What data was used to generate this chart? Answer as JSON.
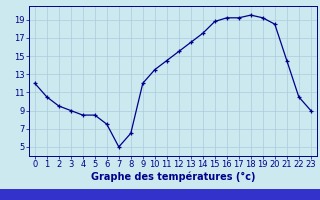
{
  "hours": [
    0,
    1,
    2,
    3,
    4,
    5,
    6,
    7,
    8,
    9,
    10,
    11,
    12,
    13,
    14,
    15,
    16,
    17,
    18,
    19,
    20,
    21,
    22,
    23
  ],
  "temps": [
    12.0,
    10.5,
    9.5,
    9.0,
    8.5,
    8.5,
    7.5,
    5.0,
    6.5,
    12.0,
    13.5,
    14.5,
    15.5,
    16.5,
    17.5,
    18.8,
    19.2,
    19.2,
    19.5,
    19.2,
    18.5,
    14.5,
    10.5,
    9.0
  ],
  "bg_color": "#cce9f0",
  "line_color": "#00008b",
  "marker_color": "#00008b",
  "grid_color": "#aaccdd",
  "xlabel": "Graphe des températures (°c)",
  "xlim": [
    -0.5,
    23.5
  ],
  "ylim": [
    4,
    20.5
  ],
  "yticks": [
    5,
    7,
    9,
    11,
    13,
    15,
    17,
    19
  ],
  "xticks": [
    0,
    1,
    2,
    3,
    4,
    5,
    6,
    7,
    8,
    9,
    10,
    11,
    12,
    13,
    14,
    15,
    16,
    17,
    18,
    19,
    20,
    21,
    22,
    23
  ],
  "axis_color": "#00008b",
  "bottom_bar_color": "#3333cc",
  "label_fontsize": 7,
  "tick_fontsize": 6
}
